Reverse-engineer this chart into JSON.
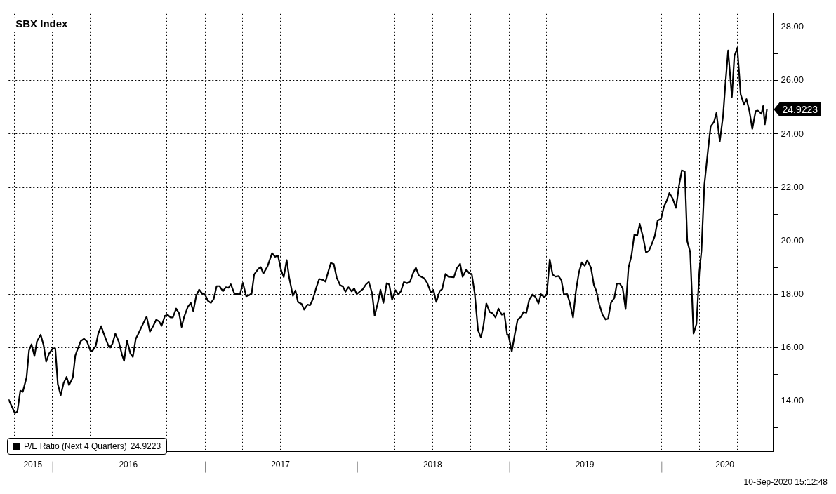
{
  "chart_data": {
    "type": "line",
    "title": "SBX Index",
    "annotations": [
      "10-Sep-2020 15:12:48"
    ],
    "x": [
      "2015-09-18",
      "2015-10-03",
      "2015-10-09",
      "2015-10-16",
      "2015-10-22",
      "2015-10-31",
      "2015-11-06",
      "2015-11-12",
      "2015-11-19",
      "2015-11-25",
      "2015-12-04",
      "2015-12-11",
      "2015-12-17",
      "2015-12-24",
      "2016-01-02",
      "2016-01-08",
      "2016-01-14",
      "2016-01-21",
      "2016-01-28",
      "2016-02-04",
      "2016-02-10",
      "2016-02-19",
      "2016-02-25",
      "2016-03-01",
      "2016-03-09",
      "2016-03-17",
      "2016-03-24",
      "2016-04-01",
      "2016-04-06",
      "2016-04-14",
      "2016-04-20",
      "2016-04-27",
      "2016-05-04",
      "2016-05-14",
      "2016-05-18",
      "2016-05-24",
      "2016-05-31",
      "2016-06-08",
      "2016-06-16",
      "2016-06-21",
      "2016-06-28",
      "2016-07-06",
      "2016-07-12",
      "2016-07-19",
      "2016-07-24",
      "2016-08-03",
      "2016-08-14",
      "2016-08-22",
      "2016-08-30",
      "2016-09-06",
      "2016-09-13",
      "2016-09-19",
      "2016-09-27",
      "2016-10-04",
      "2016-10-10",
      "2016-10-16",
      "2016-10-24",
      "2016-10-31",
      "2016-11-06",
      "2016-11-12",
      "2016-11-21",
      "2016-11-28",
      "2016-12-04",
      "2016-12-11",
      "2016-12-18",
      "2016-12-25",
      "2017-01-01",
      "2017-01-08",
      "2017-01-15",
      "2017-01-22",
      "2017-01-29",
      "2017-02-05",
      "2017-02-13",
      "2017-02-20",
      "2017-02-27",
      "2017-03-04",
      "2017-03-13",
      "2017-03-18",
      "2017-03-26",
      "2017-04-02",
      "2017-04-10",
      "2017-04-17",
      "2017-04-23",
      "2017-04-29",
      "2017-05-09",
      "2017-05-15",
      "2017-05-21",
      "2017-05-31",
      "2017-06-11",
      "2017-06-18",
      "2017-06-25",
      "2017-07-03",
      "2017-07-09",
      "2017-07-16",
      "2017-07-22",
      "2017-07-31",
      "2017-08-06",
      "2017-08-12",
      "2017-08-21",
      "2017-08-27",
      "2017-09-04",
      "2017-09-10",
      "2017-09-17",
      "2017-09-24",
      "2017-10-02",
      "2017-10-11",
      "2017-10-17",
      "2017-10-24",
      "2017-10-30",
      "2017-11-06",
      "2017-11-13",
      "2017-11-21",
      "2017-11-28",
      "2017-12-04",
      "2017-12-11",
      "2017-12-19",
      "2017-12-25",
      "2017-12-31",
      "2018-01-07",
      "2018-01-15",
      "2018-01-22",
      "2018-01-29",
      "2018-02-06",
      "2018-02-12",
      "2018-02-20",
      "2018-02-26",
      "2018-03-05",
      "2018-03-13",
      "2018-03-19",
      "2018-03-26",
      "2018-04-03",
      "2018-04-10",
      "2018-04-16",
      "2018-04-23",
      "2018-05-01",
      "2018-05-08",
      "2018-05-15",
      "2018-05-22",
      "2018-05-29",
      "2018-06-11",
      "2018-06-18",
      "2018-06-27",
      "2018-07-03",
      "2018-07-10",
      "2018-07-18",
      "2018-07-24",
      "2018-08-01",
      "2018-08-08",
      "2018-08-21",
      "2018-08-28",
      "2018-09-05",
      "2018-09-11",
      "2018-09-20",
      "2018-09-27",
      "2018-10-03",
      "2018-10-10",
      "2018-10-18",
      "2018-10-25",
      "2018-10-31",
      "2018-11-07",
      "2018-11-15",
      "2018-11-22",
      "2018-11-29",
      "2018-12-06",
      "2018-12-14",
      "2018-12-20",
      "2018-12-27",
      "2018-12-30",
      "2019-01-07",
      "2019-01-15",
      "2019-01-21",
      "2019-01-29",
      "2019-02-04",
      "2019-02-11",
      "2019-02-18",
      "2019-02-26",
      "2019-03-05",
      "2019-03-12",
      "2019-03-18",
      "2019-03-26",
      "2019-04-01",
      "2019-04-08",
      "2019-04-15",
      "2019-04-22",
      "2019-04-29",
      "2019-05-06",
      "2019-05-12",
      "2019-05-20",
      "2019-05-26",
      "2019-06-03",
      "2019-06-10",
      "2019-06-17",
      "2019-06-24",
      "2019-07-01",
      "2019-07-07",
      "2019-07-16",
      "2019-07-23",
      "2019-07-29",
      "2019-08-05",
      "2019-08-13",
      "2019-08-20",
      "2019-08-26",
      "2019-09-02",
      "2019-09-10",
      "2019-09-16",
      "2019-09-23",
      "2019-09-30",
      "2019-10-07",
      "2019-10-14",
      "2019-10-21",
      "2019-10-28",
      "2019-11-04",
      "2019-11-10",
      "2019-11-18",
      "2019-11-25",
      "2019-12-02",
      "2019-12-09",
      "2019-12-16",
      "2019-12-23",
      "2019-12-31",
      "2020-01-07",
      "2020-01-14",
      "2020-01-20",
      "2020-01-28",
      "2020-02-05",
      "2020-02-12",
      "2020-02-19",
      "2020-02-26",
      "2020-03-03",
      "2020-03-10",
      "2020-03-18",
      "2020-03-25",
      "2020-04-01",
      "2020-04-06",
      "2020-04-13",
      "2020-04-22",
      "2020-04-28",
      "2020-05-06",
      "2020-05-12",
      "2020-05-20",
      "2020-05-28",
      "2020-06-02",
      "2020-06-09",
      "2020-06-18",
      "2020-06-24",
      "2020-07-01",
      "2020-07-09",
      "2020-07-17",
      "2020-07-23",
      "2020-07-30",
      "2020-08-06",
      "2020-08-14",
      "2020-08-19",
      "2020-08-28",
      "2020-09-01",
      "2020-09-05",
      "2020-09-10"
    ],
    "series": [
      {
        "name": "P/E Ratio (Next 4 Quarters)",
        "color": "#000000",
        "values": [
          14.05,
          13.54,
          13.6,
          14.38,
          14.34,
          14.88,
          15.89,
          16.12,
          15.68,
          16.23,
          16.48,
          16.08,
          15.47,
          15.77,
          15.97,
          15.96,
          14.63,
          14.21,
          14.67,
          14.9,
          14.59,
          14.88,
          15.7,
          15.92,
          16.24,
          16.33,
          16.23,
          15.89,
          15.87,
          16.06,
          16.52,
          16.8,
          16.49,
          16.08,
          15.99,
          16.14,
          16.52,
          16.23,
          15.73,
          15.5,
          16.27,
          15.78,
          15.65,
          16.33,
          16.48,
          16.81,
          17.16,
          16.59,
          16.81,
          17.04,
          16.98,
          16.81,
          17.19,
          17.22,
          17.13,
          17.13,
          17.46,
          17.28,
          16.77,
          17.15,
          17.53,
          17.67,
          17.36,
          17.94,
          18.17,
          18.03,
          17.99,
          17.75,
          17.67,
          17.82,
          18.3,
          18.3,
          18.11,
          18.26,
          18.24,
          18.37,
          18.0,
          18.01,
          17.99,
          18.42,
          17.92,
          17.96,
          18.03,
          18.74,
          18.95,
          19.01,
          18.77,
          19.04,
          19.54,
          19.4,
          19.45,
          18.88,
          18.64,
          19.28,
          18.62,
          17.94,
          18.14,
          17.71,
          17.63,
          17.42,
          17.61,
          17.58,
          17.82,
          18.19,
          18.57,
          18.53,
          18.47,
          18.86,
          19.17,
          19.13,
          18.62,
          18.34,
          18.28,
          18.09,
          18.26,
          18.1,
          18.22,
          18.0,
          18.09,
          18.19,
          18.36,
          18.46,
          18.03,
          17.19,
          17.69,
          18.17,
          17.67,
          18.41,
          18.36,
          17.79,
          18.15,
          17.99,
          18.11,
          18.45,
          18.41,
          18.47,
          18.78,
          18.99,
          18.7,
          18.59,
          18.42,
          18.06,
          18.16,
          17.71,
          18.11,
          18.19,
          18.76,
          18.65,
          18.63,
          18.97,
          19.14,
          18.65,
          18.92,
          18.78,
          18.75,
          18.04,
          16.65,
          16.38,
          16.81,
          17.65,
          17.33,
          17.28,
          17.13,
          17.46,
          17.23,
          17.28,
          16.48,
          16.48,
          15.85,
          16.56,
          17.04,
          17.15,
          17.33,
          17.3,
          17.8,
          17.99,
          17.89,
          17.65,
          18.0,
          17.88,
          18.0,
          19.3,
          18.73,
          18.66,
          18.68,
          18.52,
          17.99,
          18.0,
          17.69,
          17.13,
          18.13,
          18.81,
          19.19,
          19.06,
          19.27,
          18.99,
          18.34,
          18.11,
          17.61,
          17.21,
          17.05,
          17.08,
          17.68,
          17.86,
          18.38,
          18.4,
          18.22,
          17.44,
          18.99,
          19.43,
          20.23,
          20.19,
          20.63,
          20.13,
          19.56,
          19.63,
          19.88,
          20.17,
          20.76,
          20.82,
          21.28,
          21.51,
          21.79,
          21.58,
          21.23,
          22.05,
          22.64,
          22.6,
          19.98,
          19.58,
          16.52,
          16.88,
          18.84,
          19.62,
          22.1,
          23.44,
          24.28,
          24.45,
          24.79,
          23.72,
          24.7,
          25.79,
          27.13,
          25.39,
          26.92,
          27.23,
          25.49,
          25.1,
          25.31,
          24.86,
          24.19,
          24.86,
          24.88,
          24.76,
          25.05,
          24.36,
          24.9223
        ],
        "value_labels": [
          null,
          null,
          null,
          null,
          null,
          null,
          null,
          null,
          null,
          null,
          null,
          null,
          null,
          null,
          null,
          null,
          null,
          null,
          null,
          null,
          null,
          null,
          null,
          null,
          null,
          null,
          null,
          null,
          null,
          null,
          null,
          null,
          null,
          null,
          null,
          null,
          null,
          null,
          null,
          null,
          null,
          null,
          null,
          null,
          null,
          null,
          null,
          null,
          null,
          null,
          null,
          null,
          null,
          null,
          null,
          null,
          null,
          null,
          null,
          null,
          null,
          null,
          null,
          null,
          null,
          null,
          null,
          null,
          null,
          null,
          null,
          null,
          null,
          null,
          null,
          null,
          null,
          null,
          null,
          null,
          null,
          null,
          null,
          null,
          null,
          null,
          null,
          null,
          null,
          null,
          null,
          null,
          null,
          null,
          null,
          null,
          null,
          null,
          null,
          null,
          null,
          null,
          null,
          null,
          null,
          null,
          null,
          null,
          null,
          null,
          null,
          null,
          null,
          null,
          null,
          null,
          null,
          null,
          null,
          null,
          null,
          null,
          null,
          null,
          null,
          null,
          null,
          null,
          null,
          null,
          null,
          null,
          null,
          null,
          null,
          null,
          null,
          null,
          null,
          null,
          null,
          null,
          null,
          null,
          null,
          null,
          null,
          null,
          null,
          null,
          null,
          null,
          null,
          null,
          null,
          null,
          null,
          null,
          null,
          null,
          null,
          null,
          null,
          null,
          null,
          null,
          null,
          null,
          null,
          null,
          null,
          null,
          null,
          null,
          null,
          null,
          null,
          null,
          null,
          null,
          null,
          null,
          null,
          null,
          null,
          null,
          null,
          null,
          null,
          null,
          null,
          null,
          null,
          null,
          null,
          null,
          null,
          null,
          null,
          null,
          null,
          null,
          null,
          null,
          null,
          null,
          null,
          null,
          null,
          null,
          null,
          null,
          null,
          null,
          null,
          null,
          null,
          null,
          null,
          null,
          null,
          null,
          null,
          null,
          null,
          null,
          null,
          null,
          null,
          null,
          null,
          null,
          null,
          null,
          null,
          null,
          null,
          null,
          null,
          null,
          null,
          null,
          null,
          null,
          null,
          null,
          null,
          null,
          null,
          null,
          null,
          null,
          null,
          null,
          null,
          null,
          "24.9223"
        ]
      }
    ],
    "xlim": [
      "2015-09-18",
      "2020-09-25"
    ],
    "xticks": [
      {
        "value": "2015-10-01",
        "label": null
      },
      {
        "value": "2015-11-15",
        "label": "2015"
      },
      {
        "value": "2016-01-01",
        "label": null
      },
      {
        "value": "2016-04-01",
        "label": null
      },
      {
        "value": "2016-07-01",
        "label": "2016"
      },
      {
        "value": "2016-07-01",
        "label": null
      },
      {
        "value": "2016-10-01",
        "label": null
      },
      {
        "value": "2017-01-01",
        "label": null
      },
      {
        "value": "2017-04-01",
        "label": null
      },
      {
        "value": "2017-07-01",
        "label": "2017"
      },
      {
        "value": "2017-07-01",
        "label": null
      },
      {
        "value": "2017-10-01",
        "label": null
      },
      {
        "value": "2018-01-01",
        "label": null
      },
      {
        "value": "2018-04-01",
        "label": null
      },
      {
        "value": "2018-07-01",
        "label": "2018"
      },
      {
        "value": "2018-07-01",
        "label": null
      },
      {
        "value": "2018-10-01",
        "label": null
      },
      {
        "value": "2019-01-01",
        "label": null
      },
      {
        "value": "2019-04-01",
        "label": null
      },
      {
        "value": "2019-07-01",
        "label": "2019"
      },
      {
        "value": "2019-07-01",
        "label": null
      },
      {
        "value": "2019-10-01",
        "label": null
      },
      {
        "value": "2020-01-01",
        "label": null
      },
      {
        "value": "2020-04-01",
        "label": null
      },
      {
        "value": "2020-06-01",
        "label": "2020"
      },
      {
        "value": "2020-07-01",
        "label": null
      }
    ],
    "ylim": [
      12.1,
      28.5
    ],
    "yticks": [
      {
        "value": 13,
        "label": null
      },
      {
        "value": 14,
        "label": "14.00"
      },
      {
        "value": 15,
        "label": null
      },
      {
        "value": 16,
        "label": "16.00"
      },
      {
        "value": 17,
        "label": null
      },
      {
        "value": 18,
        "label": "18.00"
      },
      {
        "value": 19,
        "label": null
      },
      {
        "value": 20,
        "label": "20.00"
      },
      {
        "value": 21,
        "label": null
      },
      {
        "value": 22,
        "label": "22.00"
      },
      {
        "value": 23,
        "label": null
      },
      {
        "value": 24,
        "label": "24.00"
      },
      {
        "value": 25,
        "label": null
      },
      {
        "value": 26,
        "label": "26.00"
      },
      {
        "value": 27,
        "label": null
      },
      {
        "value": 28,
        "label": "28.00"
      }
    ],
    "grid": true,
    "legend": "bottom left",
    "marker": "none",
    "line_style": "solid"
  }
}
